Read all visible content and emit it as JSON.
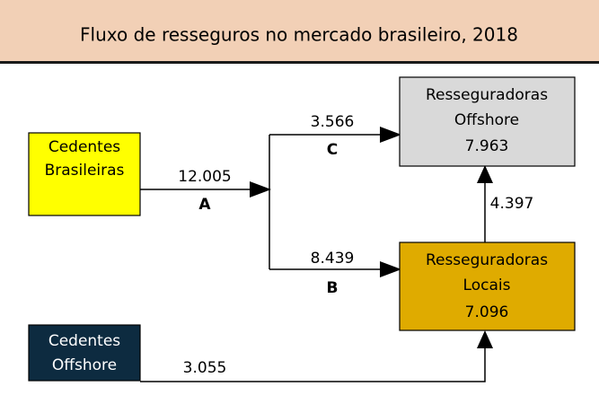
{
  "header": {
    "title": "Fluxo de resseguros no mercado brasileiro, 2018"
  },
  "nodes": [
    {
      "lines": [
        "Cedentes",
        "Brasileiras"
      ]
    },
    {
      "lines": [
        "Resseguradoras",
        "Offshore"
      ],
      "value": "7.963"
    },
    {
      "lines": [
        "Resseguradoras",
        "Locais"
      ],
      "value": "7.096"
    },
    {
      "lines": [
        "Cedentes",
        "Offshore"
      ]
    }
  ],
  "edges": [
    {
      "value": "12.005",
      "label": "A"
    },
    {
      "value": "3.566",
      "label": "C"
    },
    {
      "value": "8.439",
      "label": "B"
    },
    {
      "value": "4.397"
    },
    {
      "value": "3.055"
    }
  ]
}
